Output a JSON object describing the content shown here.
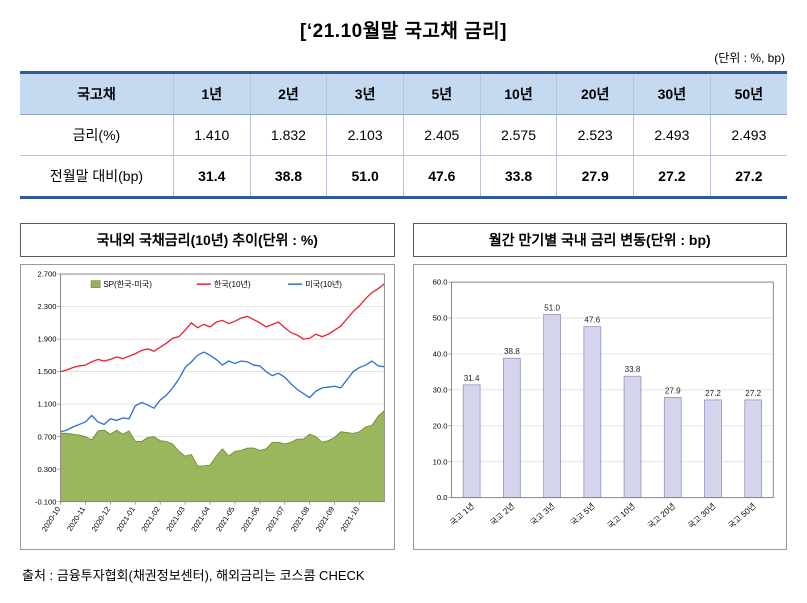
{
  "page": {
    "title": "[‘21.10월말 국고채 금리]",
    "unit_note": "(단위 : %, bp)",
    "source": "출처 : 금융투자협회(채권정보센터), 해외금리는 코스콤 CHECK"
  },
  "table": {
    "header": [
      "국고채",
      "1년",
      "2년",
      "3년",
      "5년",
      "10년",
      "20년",
      "30년",
      "50년"
    ],
    "rows": [
      {
        "label": "금리(%)",
        "values": [
          "1.410",
          "1.832",
          "2.103",
          "2.405",
          "2.575",
          "2.523",
          "2.493",
          "2.493"
        ]
      },
      {
        "label": "전월말 대비(bp)",
        "values": [
          "31.4",
          "38.8",
          "51.0",
          "47.6",
          "33.8",
          "27.9",
          "27.2",
          "27.2"
        ]
      }
    ]
  },
  "chart_data": [
    {
      "type": "line",
      "title": "국내외 국채금리(10년) 추이(단위 : %)",
      "ylim": [
        -0.1,
        2.7
      ],
      "ytick_labels": [
        "-0.100",
        "0.300",
        "0.700",
        "1.100",
        "1.500",
        "1.900",
        "2.300",
        "2.700"
      ],
      "yticks": [
        -0.1,
        0.3,
        0.7,
        1.1,
        1.5,
        1.9,
        2.3,
        2.7
      ],
      "x_tick_labels": [
        "2020-10",
        "2020-11",
        "2020-12",
        "2021-01",
        "2021-02",
        "2021-03",
        "2021-04",
        "2021-05",
        "2021-06",
        "2021-07",
        "2021-08",
        "2021-09",
        "2021-10"
      ],
      "grid": true,
      "legend_position": "top-inside",
      "series": [
        {
          "name": "SP(한국-미국)",
          "type": "area",
          "color": "#95b354",
          "edge_color": "#6e8f3c",
          "values": [
            0.74,
            0.74,
            0.73,
            0.72,
            0.7,
            0.66,
            0.77,
            0.78,
            0.73,
            0.78,
            0.73,
            0.77,
            0.64,
            0.64,
            0.69,
            0.7,
            0.65,
            0.64,
            0.61,
            0.52,
            0.46,
            0.48,
            0.34,
            0.34,
            0.35,
            0.46,
            0.55,
            0.46,
            0.52,
            0.53,
            0.56,
            0.56,
            0.53,
            0.55,
            0.63,
            0.63,
            0.61,
            0.63,
            0.67,
            0.67,
            0.73,
            0.7,
            0.63,
            0.65,
            0.69,
            0.76,
            0.75,
            0.74,
            0.76,
            0.82,
            0.84,
            0.95,
            1.02
          ]
        },
        {
          "name": "한국(10년)",
          "type": "line",
          "color": "#e8232e",
          "values": [
            1.5,
            1.52,
            1.55,
            1.57,
            1.58,
            1.62,
            1.65,
            1.63,
            1.65,
            1.68,
            1.66,
            1.69,
            1.72,
            1.76,
            1.78,
            1.75,
            1.8,
            1.85,
            1.91,
            1.93,
            2.01,
            2.1,
            2.04,
            2.08,
            2.05,
            2.11,
            2.13,
            2.09,
            2.12,
            2.16,
            2.18,
            2.14,
            2.1,
            2.05,
            2.08,
            2.11,
            2.04,
            1.98,
            1.95,
            1.9,
            1.91,
            1.96,
            1.93,
            1.96,
            2.01,
            2.06,
            2.15,
            2.24,
            2.31,
            2.4,
            2.47,
            2.52,
            2.58
          ]
        },
        {
          "name": "미국(10년)",
          "type": "line",
          "color": "#2f6fd0",
          "values": [
            0.76,
            0.78,
            0.82,
            0.85,
            0.88,
            0.96,
            0.88,
            0.85,
            0.92,
            0.9,
            0.93,
            0.92,
            1.08,
            1.12,
            1.09,
            1.05,
            1.15,
            1.21,
            1.3,
            1.41,
            1.55,
            1.62,
            1.7,
            1.74,
            1.7,
            1.65,
            1.58,
            1.63,
            1.6,
            1.63,
            1.62,
            1.58,
            1.57,
            1.5,
            1.45,
            1.48,
            1.43,
            1.35,
            1.28,
            1.23,
            1.18,
            1.26,
            1.3,
            1.31,
            1.32,
            1.3,
            1.4,
            1.5,
            1.55,
            1.58,
            1.63,
            1.57,
            1.56
          ]
        }
      ]
    },
    {
      "type": "bar",
      "title": "월간 만기별 국내 금리 변동(단위 : bp)",
      "categories": [
        "국고 1년",
        "국고 2년",
        "국고 3년",
        "국고 5년",
        "국고 10년",
        "국고 20년",
        "국고 30년",
        "국고 50년"
      ],
      "values": [
        31.4,
        38.8,
        51.0,
        47.6,
        33.8,
        27.9,
        27.2,
        27.2
      ],
      "value_labels": [
        "31.4",
        "38.8",
        "51.0",
        "47.6",
        "33.8",
        "27.9",
        "27.2",
        "27.2"
      ],
      "ylim": [
        0,
        60
      ],
      "ytick_labels": [
        "0.0",
        "10.0",
        "20.0",
        "30.0",
        "40.0",
        "50.0",
        "60.0"
      ],
      "yticks": [
        0,
        10,
        20,
        30,
        40,
        50,
        60
      ],
      "grid": true,
      "bar_color": "#d4d4ec",
      "bar_border": "#9393c3"
    }
  ]
}
